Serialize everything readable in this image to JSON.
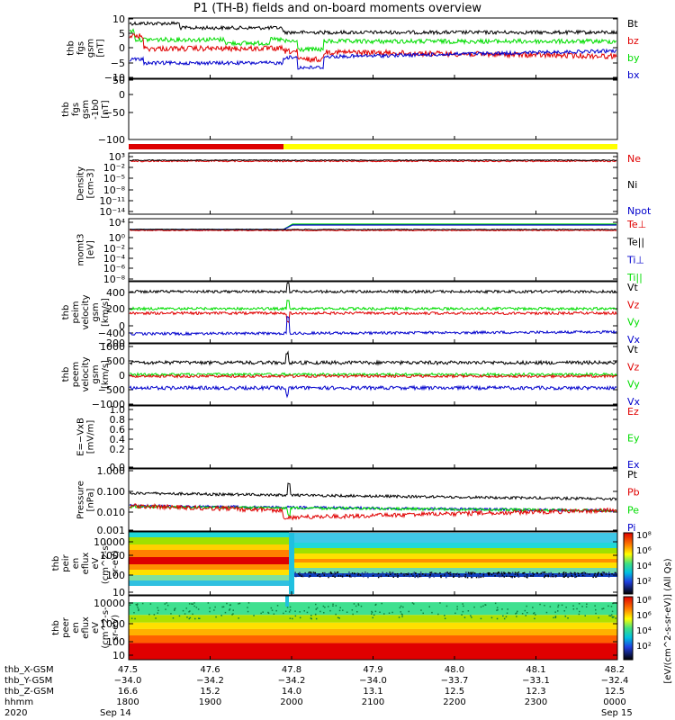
{
  "title": "P1 (TH-B) fields and on-board moments overview",
  "colors": {
    "black": "#000000",
    "red": "#e00000",
    "green": "#00dd00",
    "blue": "#0000cc",
    "yellow": "#ffff00",
    "mode_red": "#dd0000"
  },
  "panels": [
    {
      "id": "fgs-gsm",
      "ylabel": [
        "thb",
        "fgs",
        "gsm",
        "[nT]"
      ],
      "ticks": [
        "10",
        "5",
        "0",
        "−5",
        "−10"
      ],
      "legend": [
        {
          "text": "Bt",
          "color": "#000000"
        },
        {
          "text": "bz",
          "color": "#e00000"
        },
        {
          "text": "by",
          "color": "#00dd00"
        },
        {
          "text": "bx",
          "color": "#0000cc"
        }
      ]
    },
    {
      "id": "fgs-gsm-btotal",
      "ylabel": [
        "thb",
        "fgs",
        "gsm",
        "-1b0",
        "[nT]"
      ],
      "ticks": [
        "50",
        "0",
        "−50",
        "−100"
      ],
      "legend": []
    },
    {
      "id": "density",
      "ylabel": [
        "Density",
        "[cm-3]"
      ],
      "ticks": [
        "10³",
        "10⁻²",
        "10⁻⁵",
        "10⁻⁸",
        "10⁻¹¹",
        "10⁻¹⁴"
      ],
      "legend": [
        {
          "text": "Ne",
          "color": "#e00000"
        },
        {
          "text": "Ni",
          "color": "#000000"
        },
        {
          "text": "Npot",
          "color": "#0000cc"
        }
      ]
    },
    {
      "id": "temperature",
      "ylabel": [
        "momt3",
        "[eV]"
      ],
      "ticks": [
        "10⁴",
        "10⁰",
        "10⁻²",
        "10⁻⁴",
        "10⁻⁶",
        "10⁻⁸"
      ],
      "legend": [
        {
          "text": "Te⊥",
          "color": "#e00000"
        },
        {
          "text": "Te||",
          "color": "#000000"
        },
        {
          "text": "Ti⊥",
          "color": "#0000cc"
        },
        {
          "text": "Ti||",
          "color": "#00dd00"
        }
      ]
    },
    {
      "id": "peim-velocity",
      "ylabel": [
        "thb",
        "peim",
        "velocity",
        "gsm",
        "[km/s]"
      ],
      "ticks": [
        "400",
        "200",
        "0",
        "−200",
        "−400"
      ],
      "legend": [
        {
          "text": "Vt",
          "color": "#000000"
        },
        {
          "text": "Vz",
          "color": "#e00000"
        },
        {
          "text": "Vy",
          "color": "#00dd00"
        },
        {
          "text": "Vx",
          "color": "#0000cc"
        }
      ]
    },
    {
      "id": "peem-velocity",
      "ylabel": [
        "thb",
        "peem",
        "velocity",
        "gsm",
        "[km/s]"
      ],
      "ticks": [
        "1000",
        "500",
        "0",
        "−500",
        "−1000"
      ],
      "legend": [
        {
          "text": "Vt",
          "color": "#000000"
        },
        {
          "text": "Vz",
          "color": "#e00000"
        },
        {
          "text": "Vy",
          "color": "#00dd00"
        },
        {
          "text": "Vx",
          "color": "#0000cc"
        }
      ]
    },
    {
      "id": "efield",
      "ylabel": [
        "E=−VxB",
        "[mV/m]"
      ],
      "ticks": [
        "1.0",
        "0.8",
        "0.6",
        "0.4",
        "0.2",
        "0.0"
      ],
      "legend": [
        {
          "text": "Ez",
          "color": "#e00000"
        },
        {
          "text": "Ey",
          "color": "#00dd00"
        },
        {
          "text": "Ex",
          "color": "#0000cc"
        }
      ]
    },
    {
      "id": "pressure",
      "ylabel": [
        "Pressure",
        "[nPa]"
      ],
      "ticks": [
        "1.000",
        "0.100",
        "0.010",
        "0.001"
      ],
      "legend": [
        {
          "text": "Pt",
          "color": "#000000"
        },
        {
          "text": "Pb",
          "color": "#e00000"
        },
        {
          "text": "Pe",
          "color": "#00dd00"
        },
        {
          "text": "Pi",
          "color": "#0000cc"
        }
      ]
    },
    {
      "id": "peir-eflux",
      "ylabel": [
        "thb",
        "peir",
        "en",
        "eflux",
        "eV",
        "(cm^2-s-",
        "sr-eV)"
      ],
      "ticks": [
        "10000",
        "1000",
        "100",
        "10"
      ],
      "legend": []
    },
    {
      "id": "peer-eflux",
      "ylabel": [
        "thb",
        "peer",
        "en",
        "eflux",
        "eV",
        "(cm^2-s-",
        "sr-eV)"
      ],
      "ticks": [
        "10000",
        "1000",
        "100",
        "10"
      ],
      "legend": []
    }
  ],
  "colorbar": {
    "label": "[eV/(cm^2-s-sr-eV)] (All Qs)",
    "ticks_top": [
      "10⁸",
      "10⁶",
      "10⁴",
      "10²"
    ],
    "ticks_bottom": [
      "10⁸",
      "10⁶",
      "10⁴",
      "10²"
    ]
  },
  "x_axis": {
    "row_labels": [
      "thb_X-GSM",
      "thb_Y-GSM",
      "thb_Z-GSM",
      "hhmm",
      "2020"
    ],
    "columns": [
      {
        "x": "47.5",
        "y": "−34.0",
        "z": "16.6",
        "hhmm": "1800"
      },
      {
        "x": "47.6",
        "y": "−34.2",
        "z": "15.2",
        "hhmm": "1900"
      },
      {
        "x": "47.8",
        "y": "−34.2",
        "z": "14.0",
        "hhmm": "2000"
      },
      {
        "x": "47.9",
        "y": "−34.0",
        "z": "13.1",
        "hhmm": "2100"
      },
      {
        "x": "48.0",
        "y": "−33.7",
        "z": "12.5",
        "hhmm": "2200"
      },
      {
        "x": "48.1",
        "y": "−33.1",
        "z": "12.3",
        "hhmm": "2300"
      },
      {
        "x": "48.2",
        "y": "−32.4",
        "z": "12.5",
        "hhmm": "0000"
      }
    ],
    "date_start": "Sep 14",
    "date_end": "Sep 15"
  },
  "chart_data": {
    "type": "line",
    "title": "P1 (TH-B) fields and on-board moments overview",
    "x_label": "hhmm",
    "x_range": [
      "2020-09-14 18:00",
      "2020-09-15 00:00"
    ],
    "mode_bar": [
      {
        "start": "18:00",
        "end": "20:00",
        "color": "red"
      },
      {
        "start": "20:00",
        "end": "00:00",
        "color": "yellow"
      }
    ],
    "series": [
      {
        "panel": "fgs-gsm",
        "name": "Bt",
        "approx_values": [
          8,
          7,
          6.5,
          6,
          6.5,
          6,
          6
        ]
      },
      {
        "panel": "fgs-gsm",
        "name": "bz",
        "approx_values": [
          4,
          0,
          -2,
          -1,
          -1,
          -2,
          -3
        ]
      },
      {
        "panel": "fgs-gsm",
        "name": "by",
        "approx_values": [
          4,
          3,
          3,
          3,
          3,
          3,
          3
        ]
      },
      {
        "panel": "fgs-gsm",
        "name": "bx",
        "approx_values": [
          -5,
          -4,
          -3,
          -2,
          -2,
          -2,
          -2
        ]
      },
      {
        "panel": "peim-velocity",
        "name": "Vt",
        "approx_values": [
          420,
          400,
          400,
          390,
          390,
          380,
          380
        ]
      },
      {
        "panel": "peim-velocity",
        "name": "Vy",
        "approx_values": [
          60,
          40,
          30,
          20,
          20,
          30,
          40
        ]
      },
      {
        "panel": "peim-velocity",
        "name": "Vz",
        "approx_values": [
          -20,
          -30,
          -20,
          -10,
          -10,
          -10,
          -10
        ]
      },
      {
        "panel": "peim-velocity",
        "name": "Vx",
        "approx_values": [
          -380,
          -360,
          -350,
          -350,
          -340,
          -330,
          -330
        ]
      },
      {
        "panel": "pressure",
        "name": "Pt",
        "approx_values": [
          0.06,
          0.05,
          0.05,
          0.045,
          0.04,
          0.04,
          0.035
        ]
      },
      {
        "panel": "pressure",
        "name": "Pi",
        "approx_values": [
          0.03,
          0.025,
          0.02,
          0.02,
          0.02,
          0.02,
          0.015
        ]
      }
    ]
  }
}
